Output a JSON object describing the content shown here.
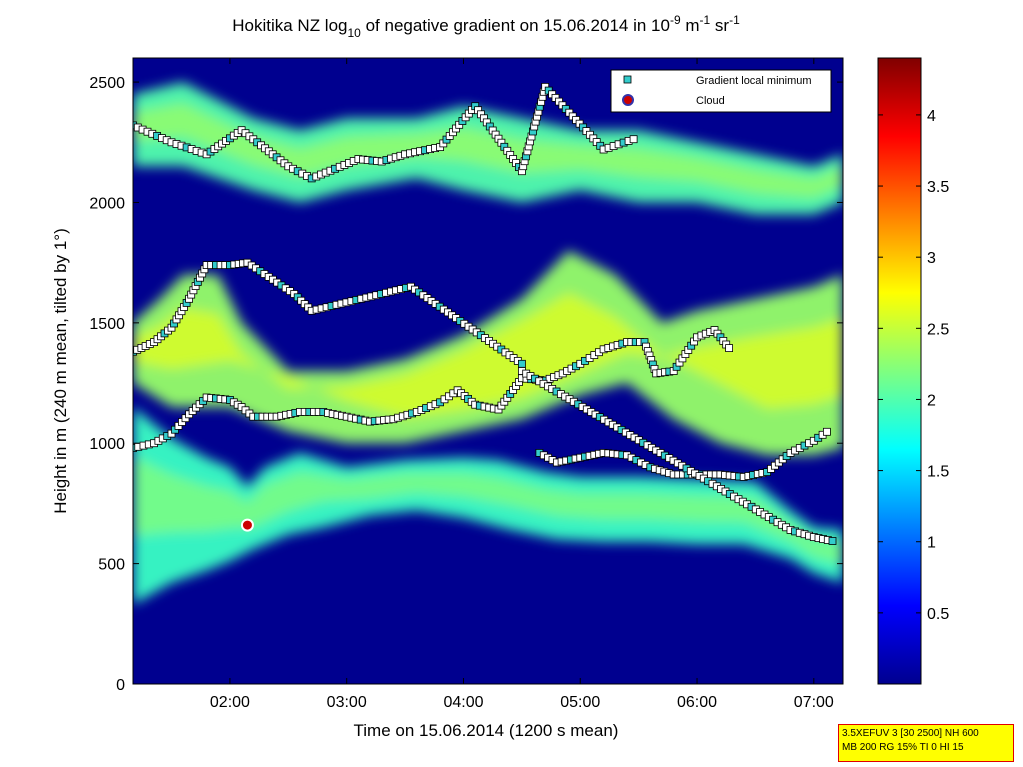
{
  "chart_data": {
    "type": "heatmap",
    "title": {
      "prefix": "Hokitika NZ log",
      "prefix_sub": "10",
      "middle": " of negative gradient on 15.06.2014 in 10",
      "sup1": "-9",
      "unit1": " m",
      "sup2": "-1",
      "unit2": " sr",
      "sup3": "-1"
    },
    "xlabel": "Time on 15.06.2014 (1200 s mean)",
    "ylabel": "Height in m (240 m mean, tilted by 1°)",
    "xlim_hours": [
      1.17,
      7.25
    ],
    "ylim": [
      0,
      2600
    ],
    "x_ticks": [
      {
        "value": 2,
        "label": "02:00"
      },
      {
        "value": 3,
        "label": "03:00"
      },
      {
        "value": 4,
        "label": "04:00"
      },
      {
        "value": 5,
        "label": "05:00"
      },
      {
        "value": 6,
        "label": "06:00"
      },
      {
        "value": 7,
        "label": "07:00"
      }
    ],
    "y_ticks": [
      {
        "value": 0,
        "label": "0"
      },
      {
        "value": 500,
        "label": "500"
      },
      {
        "value": 1000,
        "label": "1000"
      },
      {
        "value": 1500,
        "label": "1500"
      },
      {
        "value": 2000,
        "label": "2000"
      },
      {
        "value": 2500,
        "label": "2500"
      }
    ],
    "colorbar": {
      "colormap": "jet",
      "range": [
        0,
        4.4
      ],
      "ticks": [
        {
          "value": 0.5,
          "label": "0.5"
        },
        {
          "value": 1,
          "label": "1"
        },
        {
          "value": 1.5,
          "label": "1.5"
        },
        {
          "value": 2,
          "label": "2"
        },
        {
          "value": 2.5,
          "label": "2.5"
        },
        {
          "value": 3,
          "label": "3"
        },
        {
          "value": 3.5,
          "label": "3.5"
        },
        {
          "value": 4,
          "label": "4"
        }
      ]
    },
    "legend": {
      "placement": "top-right",
      "entries": [
        {
          "label": "Gradient local minimum",
          "marker": "square",
          "color": "#33cccc"
        },
        {
          "label": "Cloud",
          "marker": "circle",
          "color": "#cc0000",
          "edge": "#3333aa"
        }
      ]
    },
    "layers": [
      {
        "name": "lower aerosol layer",
        "points": [
          [
            1.17,
            1150
          ],
          [
            1.5,
            1020
          ],
          [
            1.8,
            940
          ],
          [
            2.0,
            900
          ],
          [
            2.15,
            820
          ],
          [
            2.3,
            900
          ],
          [
            2.6,
            960
          ],
          [
            3.0,
            900
          ],
          [
            3.5,
            930
          ],
          [
            4.0,
            940
          ],
          [
            4.3,
            930
          ],
          [
            4.7,
            880
          ],
          [
            5.0,
            860
          ],
          [
            5.5,
            860
          ],
          [
            6.0,
            850
          ],
          [
            6.5,
            840
          ],
          [
            6.8,
            720
          ],
          [
            7.0,
            650
          ],
          [
            7.25,
            640
          ]
        ],
        "lower": [
          [
            1.17,
            330
          ],
          [
            1.5,
            420
          ],
          [
            1.8,
            470
          ],
          [
            2.0,
            510
          ],
          [
            2.2,
            560
          ],
          [
            2.5,
            620
          ],
          [
            2.8,
            650
          ],
          [
            3.2,
            700
          ],
          [
            3.6,
            720
          ],
          [
            4.0,
            690
          ],
          [
            4.4,
            640
          ],
          [
            4.8,
            600
          ],
          [
            5.2,
            590
          ],
          [
            5.6,
            590
          ],
          [
            6.0,
            580
          ],
          [
            6.4,
            580
          ],
          [
            6.8,
            520
          ],
          [
            7.0,
            460
          ],
          [
            7.25,
            420
          ]
        ],
        "level": 1.9
      },
      {
        "name": "middle layer",
        "points": [
          [
            1.17,
            1500
          ],
          [
            1.4,
            1600
          ],
          [
            1.6,
            1700
          ],
          [
            1.9,
            1700
          ],
          [
            2.1,
            1500
          ],
          [
            2.5,
            1300
          ],
          [
            3.0,
            1300
          ],
          [
            3.5,
            1350
          ],
          [
            4.0,
            1450
          ],
          [
            4.5,
            1600
          ],
          [
            4.9,
            1800
          ],
          [
            5.3,
            1700
          ],
          [
            5.7,
            1500
          ],
          [
            6.0,
            1550
          ],
          [
            6.5,
            1600
          ],
          [
            7.0,
            1650
          ],
          [
            7.25,
            1700
          ]
        ],
        "lower": [
          [
            1.17,
            1250
          ],
          [
            1.5,
            1150
          ],
          [
            2.0,
            1150
          ],
          [
            2.5,
            1050
          ],
          [
            3.0,
            1000
          ],
          [
            3.5,
            1000
          ],
          [
            4.0,
            1050
          ],
          [
            4.5,
            1100
          ],
          [
            5.0,
            1200
          ],
          [
            5.4,
            1250
          ],
          [
            5.8,
            1100
          ],
          [
            6.2,
            1000
          ],
          [
            6.6,
            950
          ],
          [
            7.0,
            950
          ],
          [
            7.25,
            980
          ]
        ],
        "level": 2.3
      },
      {
        "name": "upper layer",
        "points": [
          [
            1.17,
            2450
          ],
          [
            1.6,
            2500
          ],
          [
            2.2,
            2350
          ],
          [
            2.6,
            2300
          ],
          [
            3.0,
            2350
          ],
          [
            3.6,
            2350
          ],
          [
            4.0,
            2400
          ],
          [
            4.5,
            2350
          ],
          [
            5.0,
            2300
          ],
          [
            5.5,
            2300
          ],
          [
            6.0,
            2250
          ],
          [
            6.5,
            2200
          ],
          [
            7.0,
            2150
          ],
          [
            7.25,
            2200
          ]
        ],
        "lower": [
          [
            1.17,
            2150
          ],
          [
            1.6,
            2150
          ],
          [
            2.2,
            2050
          ],
          [
            2.6,
            2000
          ],
          [
            3.0,
            2050
          ],
          [
            3.6,
            2100
          ],
          [
            4.0,
            2050
          ],
          [
            4.5,
            2000
          ],
          [
            5.0,
            2050
          ],
          [
            5.5,
            2000
          ],
          [
            6.0,
            2000
          ],
          [
            6.5,
            1950
          ],
          [
            7.0,
            1950
          ],
          [
            7.25,
            2000
          ]
        ],
        "level": 2.0
      }
    ],
    "gradient_minimum_series": [
      {
        "name": "lower minimum",
        "points": [
          [
            1.17,
            980
          ],
          [
            1.35,
            1000
          ],
          [
            1.5,
            1040
          ],
          [
            1.65,
            1120
          ],
          [
            1.8,
            1190
          ],
          [
            2.0,
            1180
          ],
          [
            2.1,
            1150
          ],
          [
            2.2,
            1110
          ],
          [
            2.4,
            1110
          ],
          [
            2.6,
            1130
          ],
          [
            2.8,
            1130
          ],
          [
            3.0,
            1110
          ],
          [
            3.2,
            1090
          ],
          [
            3.4,
            1100
          ],
          [
            3.6,
            1130
          ],
          [
            3.8,
            1170
          ],
          [
            3.95,
            1220
          ],
          [
            4.1,
            1160
          ],
          [
            4.3,
            1140
          ],
          [
            4.5,
            1270
          ],
          [
            4.7,
            1260
          ],
          [
            4.85,
            1290
          ],
          [
            5.0,
            1330
          ],
          [
            5.2,
            1390
          ],
          [
            5.4,
            1420
          ],
          [
            5.55,
            1420
          ],
          [
            5.65,
            1290
          ],
          [
            5.8,
            1300
          ],
          [
            6.0,
            1440
          ],
          [
            6.15,
            1470
          ],
          [
            6.3,
            1380
          ]
        ]
      },
      {
        "name": "lower-shelf minimum",
        "points": [
          [
            4.65,
            960
          ],
          [
            4.8,
            920
          ],
          [
            5.0,
            940
          ],
          [
            5.2,
            960
          ],
          [
            5.4,
            950
          ],
          [
            5.6,
            900
          ],
          [
            5.8,
            870
          ],
          [
            6.0,
            870
          ],
          [
            6.2,
            870
          ],
          [
            6.4,
            860
          ],
          [
            6.6,
            880
          ],
          [
            6.8,
            960
          ],
          [
            7.0,
            1010
          ],
          [
            7.15,
            1060
          ]
        ]
      },
      {
        "name": "elevated minimum",
        "points": [
          [
            1.17,
            1380
          ],
          [
            1.35,
            1420
          ],
          [
            1.5,
            1480
          ],
          [
            1.65,
            1600
          ],
          [
            1.8,
            1740
          ],
          [
            2.0,
            1740
          ],
          [
            2.15,
            1750
          ],
          [
            2.55,
            1620
          ],
          [
            2.7,
            1550
          ],
          [
            3.55,
            1650
          ],
          [
            4.5,
            1330
          ],
          [
            4.5,
            1300
          ],
          [
            6.8,
            640
          ],
          [
            7.0,
            610
          ],
          [
            7.2,
            590
          ]
        ]
      },
      {
        "name": "upper minimum",
        "points": [
          [
            1.17,
            2320
          ],
          [
            1.5,
            2250
          ],
          [
            1.8,
            2200
          ],
          [
            2.1,
            2300
          ],
          [
            2.5,
            2150
          ],
          [
            2.7,
            2100
          ],
          [
            3.1,
            2180
          ],
          [
            3.3,
            2170
          ],
          [
            3.5,
            2200
          ],
          [
            3.8,
            2230
          ],
          [
            4.1,
            2400
          ],
          [
            4.5,
            2130
          ],
          [
            4.7,
            2480
          ],
          [
            5.2,
            2220
          ],
          [
            5.5,
            2270
          ]
        ]
      }
    ],
    "cloud_markers": [
      {
        "time": 2.15,
        "height": 660
      }
    ]
  },
  "settings_box": {
    "line1": "3.5XEFUV 3 [30 2500] NH 600",
    "line2": "MB 200 RG 15% TI 0 HI 15"
  }
}
